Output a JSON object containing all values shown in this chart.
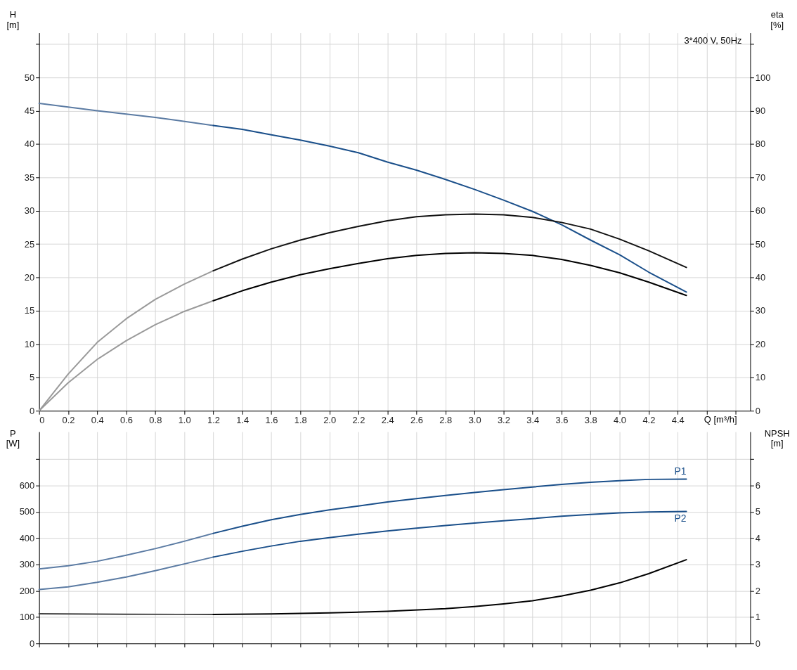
{
  "chart_data": [
    {
      "type": "line",
      "ylabel": "H [m]",
      "y2label": "eta [%]",
      "xlabel": "Q [m³/h]",
      "annotations": [
        "3*400 V, 50Hz"
      ],
      "grid": true,
      "marker": "none",
      "line_style": "solid",
      "xlim": [
        0,
        4.9
      ],
      "xticks": [
        0,
        0.2,
        0.4,
        0.6,
        0.8,
        {
          "value": 1.0,
          "label": "1.0"
        },
        1.2,
        1.4,
        1.6,
        1.8,
        {
          "value": 2.0,
          "label": "2.0"
        },
        2.2,
        2.4,
        2.6,
        2.8,
        {
          "value": 3.0,
          "label": "3.0"
        },
        3.2,
        3.4,
        3.6,
        3.8,
        {
          "value": 4.0,
          "label": "4.0"
        },
        4.2,
        4.4,
        {
          "value": 4.6,
          "label": null
        },
        {
          "value": 4.8,
          "label": null
        }
      ],
      "ylim": [
        0,
        56.7
      ],
      "yticks": [
        0,
        5,
        10,
        15,
        20,
        25,
        30,
        35,
        40,
        45,
        50,
        {
          "value": 55,
          "label": null
        }
      ],
      "y2lim": [
        0,
        113.4
      ],
      "y2ticks": [
        0,
        10,
        20,
        30,
        40,
        50,
        60,
        70,
        80,
        90,
        100,
        {
          "value": 110,
          "label": null
        }
      ],
      "series": [
        {
          "color": "#5b7ba3",
          "x": [
            0,
            0.4,
            0.8,
            1.2
          ],
          "values": [
            46.1,
            45,
            44,
            42.8
          ]
        },
        {
          "color": "#1a4f8a",
          "x": [
            1.2,
            1.4,
            1.6,
            1.8,
            2.0,
            2.2,
            2.4,
            2.6,
            2.8,
            3.0,
            3.2,
            3.4,
            3.6,
            3.8,
            4.0,
            4.2,
            4.46
          ],
          "values": [
            42.8,
            42.2,
            41.4,
            40.6,
            39.7,
            38.7,
            37.3,
            36.1,
            34.7,
            33.2,
            31.6,
            29.9,
            27.9,
            25.6,
            23.4,
            20.8,
            17.8
          ]
        },
        {
          "color": "#9a9a9a",
          "axis": "y2",
          "x": [
            0,
            0.2,
            0.4,
            0.6,
            0.8,
            1.0,
            1.2
          ],
          "values": [
            0,
            11,
            20.5,
            27.6,
            33.4,
            38,
            42
          ]
        },
        {
          "color": "#111111",
          "axis": "y2",
          "x": [
            1.2,
            1.4,
            1.6,
            1.8,
            2.0,
            2.2,
            2.4,
            2.6,
            2.8,
            3.0,
            3.2,
            3.4,
            3.6,
            3.8,
            4.0,
            4.2,
            4.46
          ],
          "values": [
            42,
            45.5,
            48.6,
            51.2,
            53.4,
            55.3,
            57,
            58.2,
            58.8,
            59,
            58.8,
            58,
            56.5,
            54.5,
            51.5,
            48,
            43
          ]
        },
        {
          "color": "#9a9a9a",
          "axis": "y2",
          "x": [
            0,
            0.2,
            0.4,
            0.6,
            0.8,
            1.0,
            1.2
          ],
          "values": [
            0,
            8.4,
            15.4,
            21,
            25.8,
            29.8,
            33
          ]
        },
        {
          "color": "#000000",
          "axis": "y2",
          "x": [
            1.2,
            1.4,
            1.6,
            1.8,
            2.0,
            2.2,
            2.4,
            2.6,
            2.8,
            3.0,
            3.2,
            3.4,
            3.6,
            3.8,
            4.0,
            4.2,
            4.46
          ],
          "values": [
            33,
            36,
            38.6,
            40.8,
            42.6,
            44.2,
            45.6,
            46.6,
            47.2,
            47.4,
            47.2,
            46.6,
            45.4,
            43.6,
            41.4,
            38.6,
            34.6
          ]
        }
      ]
    },
    {
      "type": "line",
      "ylabel": "P [W]",
      "y2label": "NPSH [m]",
      "grid": true,
      "marker": "none",
      "line_style": "solid",
      "tick_labels": "y",
      "xlim": [
        0,
        4.9
      ],
      "xticks": [
        0,
        0.2,
        0.4,
        0.6,
        0.8,
        1.0,
        1.2,
        1.4,
        1.6,
        1.8,
        2.0,
        2.2,
        2.4,
        2.6,
        2.8,
        3.0,
        3.2,
        3.4,
        3.6,
        3.8,
        4.0,
        4.2,
        4.4,
        4.6,
        4.8
      ],
      "ylim": [
        0,
        804
      ],
      "yticks": [
        0,
        100,
        200,
        300,
        400,
        500,
        600,
        {
          "value": 700,
          "label": null
        }
      ],
      "y2lim": [
        0,
        8.04
      ],
      "y2ticks": [
        0,
        1,
        2,
        3,
        4,
        5,
        6,
        {
          "value": 7,
          "label": null
        }
      ],
      "series": [
        {
          "color": "#5b7ba3",
          "x": [
            0,
            0.2,
            0.4,
            0.6,
            0.8,
            1.0,
            1.2
          ],
          "values": [
            283,
            295,
            312,
            335,
            360,
            388,
            418
          ]
        },
        {
          "name": "P1",
          "color": "#1a4f8a",
          "x": [
            1.2,
            1.4,
            1.6,
            1.8,
            2.0,
            2.2,
            2.4,
            2.6,
            2.8,
            3.0,
            3.2,
            3.4,
            3.6,
            3.8,
            4.0,
            4.2,
            4.46
          ],
          "values": [
            418,
            445,
            470,
            490,
            507,
            522,
            537,
            550,
            562,
            573,
            584,
            594,
            604,
            612,
            618,
            623,
            624
          ]
        },
        {
          "color": "#5b7ba3",
          "x": [
            0,
            0.2,
            0.4,
            0.6,
            0.8,
            1.0,
            1.2
          ],
          "values": [
            205,
            215,
            232,
            252,
            276,
            302,
            328
          ]
        },
        {
          "name": "P2",
          "color": "#1a4f8a",
          "x": [
            1.2,
            1.4,
            1.6,
            1.8,
            2.0,
            2.2,
            2.4,
            2.6,
            2.8,
            3.0,
            3.2,
            3.4,
            3.6,
            3.8,
            4.0,
            4.2,
            4.46
          ],
          "values": [
            328,
            350,
            370,
            388,
            402,
            415,
            427,
            438,
            448,
            457,
            466,
            474,
            483,
            490,
            496,
            499,
            501
          ]
        },
        {
          "color": "#444444",
          "axis": "y2",
          "x": [
            0,
            0.6,
            1.2
          ],
          "values": [
            1.13,
            1.11,
            1.1
          ]
        },
        {
          "color": "#000000",
          "axis": "y2",
          "x": [
            1.2,
            1.6,
            2.0,
            2.4,
            2.8,
            3.0,
            3.2,
            3.4,
            3.6,
            3.8,
            4.0,
            4.2,
            4.46
          ],
          "values": [
            1.1,
            1.12,
            1.16,
            1.22,
            1.32,
            1.4,
            1.5,
            1.62,
            1.8,
            2.02,
            2.3,
            2.65,
            3.18
          ]
        }
      ]
    }
  ]
}
